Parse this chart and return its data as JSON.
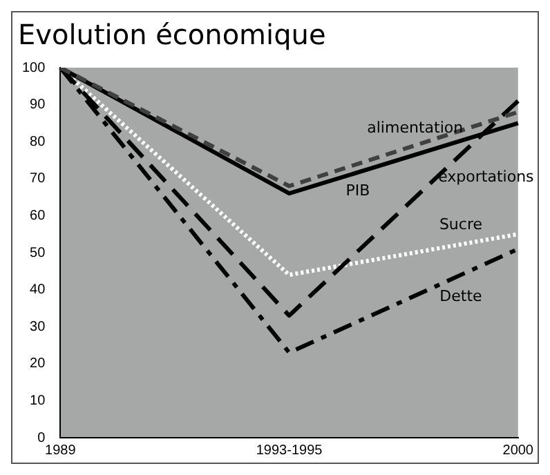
{
  "chart_data": {
    "type": "line",
    "title": "Evolution économique",
    "categories": [
      "1989",
      "1993-1995",
      "2000"
    ],
    "series": [
      {
        "name": "alimentation",
        "color": "#404040",
        "line_style": "dashed",
        "values": [
          100,
          68,
          88
        ]
      },
      {
        "name": "PIB",
        "color": "#000000",
        "line_style": "solid",
        "values": [
          100,
          66,
          85
        ]
      },
      {
        "name": "exportations",
        "color": "#000000",
        "line_style": "dashed",
        "values": [
          100,
          33,
          91
        ]
      },
      {
        "name": "Sucre",
        "color": "#ffffff",
        "line_style": "dotted",
        "values": [
          100,
          44,
          55
        ]
      },
      {
        "name": "Dette",
        "color": "#000000",
        "line_style": "dashed",
        "values": [
          100,
          23,
          51
        ]
      }
    ],
    "ylim": [
      0,
      100
    ],
    "yticks": [
      0,
      10,
      20,
      30,
      40,
      50,
      60,
      70,
      80,
      90,
      100
    ],
    "grid": false,
    "legend": false,
    "marker": "none"
  }
}
